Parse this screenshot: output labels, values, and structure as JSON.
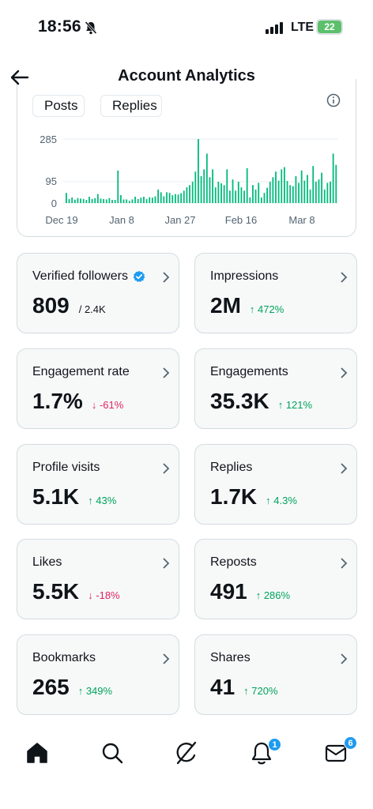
{
  "status_bar": {
    "time": "18:56",
    "network": "LTE",
    "battery": "22",
    "icons": [
      "bell-off-icon",
      "signal-icon",
      "battery-icon"
    ]
  },
  "header": {
    "title": "Account Analytics",
    "back_icon": "back-arrow-icon"
  },
  "chart": {
    "legend": [
      {
        "label": "Posts",
        "color": "#1d9bf0"
      },
      {
        "label": "Replies",
        "color": "#00ba7c"
      }
    ],
    "info_icon": "info-icon"
  },
  "chart_data": {
    "type": "bar",
    "y_ticks": [
      "285",
      "95",
      "0"
    ],
    "x_ticks": [
      "Dec 19",
      "Jan 8",
      "Jan 27",
      "Feb 16",
      "Mar 8"
    ],
    "ylim": [
      0,
      285
    ],
    "bar_color": "#00ba7c",
    "series": [
      {
        "name": "Replies",
        "values": [
          45,
          18,
          25,
          15,
          22,
          20,
          18,
          14,
          28,
          18,
          22,
          40,
          20,
          18,
          16,
          22,
          14,
          14,
          145,
          35,
          16,
          16,
          10,
          16,
          28,
          18,
          24,
          28,
          18,
          26,
          24,
          30,
          60,
          48,
          30,
          48,
          45,
          35,
          40,
          38,
          44,
          55,
          70,
          80,
          95,
          140,
          285,
          120,
          150,
          220,
          115,
          150,
          70,
          95,
          88,
          80,
          150,
          55,
          105,
          55,
          95,
          70,
          55,
          155,
          25,
          80,
          60,
          90,
          25,
          45,
          68,
          95,
          115,
          140,
          100,
          150,
          160,
          98,
          80,
          75,
          120,
          90,
          145,
          100,
          125,
          60,
          165,
          95,
          105,
          135,
          60,
          90,
          95,
          220,
          170
        ]
      }
    ]
  },
  "stats": [
    {
      "label": "Verified followers",
      "value": "809",
      "total": "/ 2.4K",
      "change": "",
      "direction": "",
      "verified": true
    },
    {
      "label": "Impressions",
      "value": "2M",
      "change": "↑ 472%",
      "direction": "up"
    },
    {
      "label": "Engagement rate",
      "value": "1.7%",
      "change": "↓ -61%",
      "direction": "down"
    },
    {
      "label": "Engagements",
      "value": "35.3K",
      "change": "↑ 121%",
      "direction": "up"
    },
    {
      "label": "Profile visits",
      "value": "5.1K",
      "change": "↑ 43%",
      "direction": "up"
    },
    {
      "label": "Replies",
      "value": "1.7K",
      "change": "↑ 4.3%",
      "direction": "up"
    },
    {
      "label": "Likes",
      "value": "5.5K",
      "change": "↓ -18%",
      "direction": "down"
    },
    {
      "label": "Reposts",
      "value": "491",
      "change": "↑ 286%",
      "direction": "up"
    },
    {
      "label": "Bookmarks",
      "value": "265",
      "change": "↑ 349%",
      "direction": "up"
    },
    {
      "label": "Shares",
      "value": "41",
      "change": "↑ 720%",
      "direction": "up"
    }
  ],
  "bottom_nav": {
    "items": [
      {
        "name": "home-icon",
        "badge": ""
      },
      {
        "name": "search-icon",
        "badge": ""
      },
      {
        "name": "grok-icon",
        "badge": ""
      },
      {
        "name": "notifications-icon",
        "badge": "1"
      },
      {
        "name": "messages-icon",
        "badge": "6"
      }
    ]
  },
  "colors": {
    "accent": "#1d9bf0",
    "positive": "#00a35a",
    "negative": "#e0245e"
  }
}
